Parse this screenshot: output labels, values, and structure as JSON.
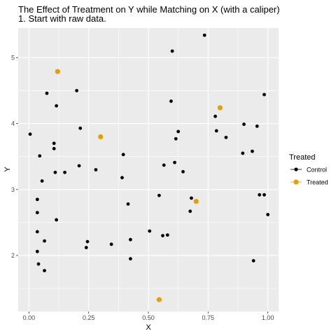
{
  "chart_data": {
    "type": "scatter",
    "title": "The Effect of Treatment on Y while Matching on X (with a caliper)",
    "subtitle": "1. Start with raw data.",
    "xlabel": "X",
    "ylabel": "Y",
    "xlim": [
      -0.045,
      1.045
    ],
    "ylim": [
      1.15,
      5.45
    ],
    "xticks": [
      0.0,
      0.25,
      0.5,
      0.75,
      1.0
    ],
    "xtick_labels": [
      "0.00",
      "0.25",
      "0.50",
      "0.75",
      "1.00"
    ],
    "yticks": [
      2,
      3,
      4,
      5
    ],
    "ytick_labels": [
      "2",
      "3",
      "4",
      "5"
    ],
    "grid": true,
    "legend": {
      "title": "Treated",
      "position": "right",
      "entries": [
        {
          "label": "Control",
          "color": "#000000"
        },
        {
          "label": "Treated",
          "color": "#E69F00"
        }
      ]
    },
    "series": [
      {
        "name": "Control",
        "color": "#000000",
        "points": [
          [
            0.005,
            3.84
          ],
          [
            0.035,
            2.85
          ],
          [
            0.035,
            2.65
          ],
          [
            0.035,
            2.36
          ],
          [
            0.035,
            2.06
          ],
          [
            0.04,
            1.87
          ],
          [
            0.045,
            3.51
          ],
          [
            0.055,
            3.13
          ],
          [
            0.065,
            2.22
          ],
          [
            0.065,
            1.77
          ],
          [
            0.075,
            4.46
          ],
          [
            0.105,
            3.7
          ],
          [
            0.105,
            3.62
          ],
          [
            0.11,
            3.26
          ],
          [
            0.115,
            2.54
          ],
          [
            0.115,
            4.27
          ],
          [
            0.15,
            3.26
          ],
          [
            0.2,
            4.5
          ],
          [
            0.21,
            3.36
          ],
          [
            0.215,
            3.93
          ],
          [
            0.24,
            2.12
          ],
          [
            0.245,
            2.21
          ],
          [
            0.28,
            3.3
          ],
          [
            0.345,
            2.17
          ],
          [
            0.39,
            3.18
          ],
          [
            0.395,
            3.53
          ],
          [
            0.415,
            2.78
          ],
          [
            0.425,
            2.24
          ],
          [
            0.425,
            1.95
          ],
          [
            0.505,
            2.37
          ],
          [
            0.545,
            2.91
          ],
          [
            0.56,
            2.3
          ],
          [
            0.565,
            3.37
          ],
          [
            0.58,
            2.31
          ],
          [
            0.595,
            4.34
          ],
          [
            0.6,
            5.1
          ],
          [
            0.61,
            3.41
          ],
          [
            0.615,
            3.77
          ],
          [
            0.625,
            3.88
          ],
          [
            0.645,
            3.27
          ],
          [
            0.675,
            2.67
          ],
          [
            0.68,
            2.87
          ],
          [
            0.735,
            5.34
          ],
          [
            0.78,
            4.11
          ],
          [
            0.785,
            3.89
          ],
          [
            0.825,
            3.79
          ],
          [
            0.895,
            3.55
          ],
          [
            0.9,
            3.99
          ],
          [
            0.935,
            3.58
          ],
          [
            0.94,
            1.92
          ],
          [
            0.955,
            3.96
          ],
          [
            0.965,
            2.92
          ],
          [
            0.985,
            2.92
          ],
          [
            0.985,
            4.44
          ],
          [
            1.0,
            2.62
          ]
        ]
      },
      {
        "name": "Treated",
        "color": "#E69F00",
        "points": [
          [
            0.12,
            4.79
          ],
          [
            0.3,
            3.8
          ],
          [
            0.545,
            1.33
          ],
          [
            0.7,
            2.82
          ],
          [
            0.8,
            4.24
          ]
        ]
      }
    ]
  }
}
